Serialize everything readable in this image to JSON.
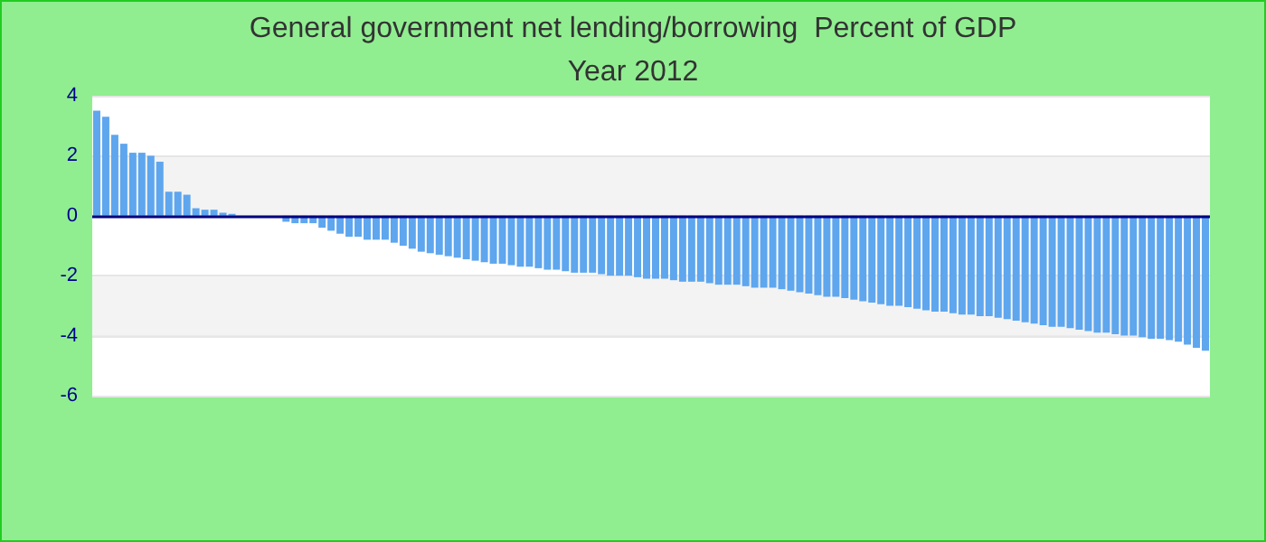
{
  "chart_data": {
    "type": "bar",
    "title": "General government net lending/borrowing  Percent of GDP",
    "subtitle": "Year 2012",
    "categories": [
      null,
      null,
      null,
      null,
      null,
      null,
      null,
      null,
      null,
      null,
      null,
      null,
      null,
      null,
      null,
      null,
      null,
      null,
      null,
      null,
      null,
      null,
      null,
      null,
      null,
      null,
      null,
      null,
      null,
      null,
      null,
      null,
      null,
      null,
      null,
      null,
      null,
      null,
      null,
      null,
      null,
      null,
      null,
      null,
      null,
      null,
      null,
      null,
      null,
      null,
      null,
      null,
      null,
      null,
      null,
      null,
      null,
      null,
      null,
      null,
      null,
      null,
      null,
      null,
      null,
      null,
      null,
      null,
      null,
      null,
      null,
      null,
      null,
      null,
      null,
      null,
      null,
      null,
      null,
      null,
      null,
      null,
      null,
      null,
      null,
      null,
      null,
      null,
      null,
      null,
      null,
      null,
      null,
      null,
      null,
      null,
      null,
      null,
      null,
      null,
      null,
      null,
      null,
      null,
      null,
      null,
      null,
      null,
      null,
      null,
      null,
      null,
      null,
      null,
      null,
      null,
      null,
      null,
      null,
      null,
      null,
      null,
      null,
      null
    ],
    "values": [
      3.5,
      3.3,
      2.7,
      2.4,
      2.1,
      2.1,
      2.0,
      1.8,
      0.8,
      0.8,
      0.7,
      0.25,
      0.2,
      0.2,
      0.1,
      0.06,
      null,
      null,
      null,
      null,
      null,
      -0.2,
      -0.25,
      -0.25,
      -0.25,
      -0.4,
      -0.5,
      -0.6,
      -0.7,
      -0.7,
      -0.8,
      -0.8,
      -0.8,
      -0.9,
      -1.0,
      -1.1,
      -1.2,
      -1.25,
      -1.3,
      -1.35,
      -1.4,
      -1.45,
      -1.5,
      -1.55,
      -1.6,
      -1.6,
      -1.65,
      -1.7,
      -1.7,
      -1.75,
      -1.8,
      -1.8,
      -1.85,
      -1.9,
      -1.9,
      -1.9,
      -1.95,
      -2.0,
      -2.0,
      -2.0,
      -2.05,
      -2.1,
      -2.1,
      -2.1,
      -2.15,
      -2.2,
      -2.2,
      -2.2,
      -2.25,
      -2.3,
      -2.3,
      -2.3,
      -2.35,
      -2.4,
      -2.4,
      -2.4,
      -2.45,
      -2.5,
      -2.55,
      -2.6,
      -2.65,
      -2.7,
      -2.7,
      -2.75,
      -2.8,
      -2.85,
      -2.9,
      -2.95,
      -3.0,
      -3.0,
      -3.05,
      -3.1,
      -3.15,
      -3.2,
      -3.2,
      -3.25,
      -3.3,
      -3.3,
      -3.35,
      -3.35,
      -3.4,
      -3.45,
      -3.5,
      -3.55,
      -3.6,
      -3.65,
      -3.7,
      -3.7,
      -3.75,
      -3.8,
      -3.85,
      -3.9,
      -3.9,
      -3.95,
      -4.0,
      -4.0,
      -4.05,
      -4.1,
      -4.1,
      -4.15,
      -4.2,
      -4.3,
      -4.4,
      -4.5
    ],
    "color": "#5ea6ee",
    "ylim": [
      -6,
      4
    ],
    "yticks": [
      -6,
      -4,
      -2,
      0,
      2,
      4
    ],
    "grid": "y",
    "ref_lines": [
      {
        "axis": "y",
        "value": 0,
        "color": "#000080"
      }
    ]
  }
}
